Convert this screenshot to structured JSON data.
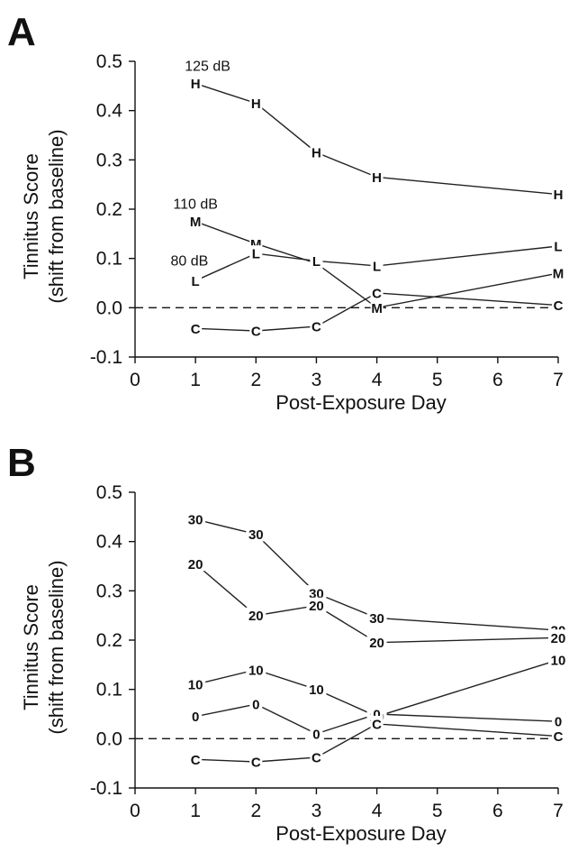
{
  "chart_data": [
    {
      "panel_label": "A",
      "type": "line",
      "xlabel": "Post-Exposure Day",
      "ylabel_lines": [
        "Tinnitus Score",
        "(shift from baseline)"
      ],
      "xlim": [
        0,
        7
      ],
      "ylim": [
        -0.1,
        0.5
      ],
      "xticks": [
        0,
        1,
        2,
        3,
        4,
        5,
        6,
        7
      ],
      "yticks": [
        -0.1,
        0.0,
        0.1,
        0.2,
        0.3,
        0.4,
        0.5
      ],
      "ytick_labels": [
        "-0.1",
        "0.0",
        "0.1",
        "0.2",
        "0.3",
        "0.4",
        "0.5"
      ],
      "reference_line": {
        "y": 0.0,
        "style": "dashed"
      },
      "annotations": [
        {
          "text": "125 dB",
          "x": 1.2,
          "y": 0.49
        },
        {
          "text": "110 dB",
          "x": 1.0,
          "y": 0.21
        },
        {
          "text": "80 dB",
          "x": 0.9,
          "y": 0.095
        }
      ],
      "series": [
        {
          "marker": "H",
          "x": [
            1,
            2,
            3,
            4,
            7
          ],
          "y": [
            0.455,
            0.415,
            0.315,
            0.265,
            0.23
          ]
        },
        {
          "marker": "M",
          "x": [
            1,
            2,
            3,
            4,
            7
          ],
          "y": [
            0.175,
            0.13,
            0.09,
            0.0,
            0.07
          ]
        },
        {
          "marker": "L",
          "x": [
            1,
            2,
            3,
            4,
            7
          ],
          "y": [
            0.055,
            0.11,
            0.095,
            0.085,
            0.125
          ]
        },
        {
          "marker": "C",
          "x": [
            1,
            2,
            3,
            4,
            7
          ],
          "y": [
            -0.042,
            -0.047,
            -0.038,
            0.03,
            0.005
          ]
        }
      ]
    },
    {
      "panel_label": "B",
      "type": "line",
      "xlabel": "Post-Exposure Day",
      "ylabel_lines": [
        "Tinnitus Score",
        "(shift from baseline)"
      ],
      "xlim": [
        0,
        7
      ],
      "ylim": [
        -0.1,
        0.5
      ],
      "xticks": [
        0,
        1,
        2,
        3,
        4,
        5,
        6,
        7
      ],
      "yticks": [
        -0.1,
        0.0,
        0.1,
        0.2,
        0.3,
        0.4,
        0.5
      ],
      "ytick_labels": [
        "-0.1",
        "0.0",
        "0.1",
        "0.2",
        "0.3",
        "0.4",
        "0.5"
      ],
      "reference_line": {
        "y": 0.0,
        "style": "dashed"
      },
      "annotations": [],
      "series": [
        {
          "marker": "30",
          "x": [
            1,
            2,
            3,
            4,
            7
          ],
          "y": [
            0.445,
            0.415,
            0.295,
            0.245,
            0.22
          ]
        },
        {
          "marker": "20",
          "x": [
            1,
            2,
            3,
            4,
            7
          ],
          "y": [
            0.355,
            0.25,
            0.27,
            0.195,
            0.205
          ]
        },
        {
          "marker": "10",
          "x": [
            1,
            2,
            3,
            4,
            7
          ],
          "y": [
            0.11,
            0.14,
            0.1,
            0.045,
            0.16
          ]
        },
        {
          "marker": "0",
          "x": [
            1,
            2,
            3,
            4,
            7
          ],
          "y": [
            0.045,
            0.07,
            0.01,
            0.05,
            0.035
          ]
        },
        {
          "marker": "C",
          "x": [
            1,
            2,
            3,
            4,
            7
          ],
          "y": [
            -0.042,
            -0.047,
            -0.038,
            0.03,
            0.005
          ]
        }
      ]
    }
  ]
}
